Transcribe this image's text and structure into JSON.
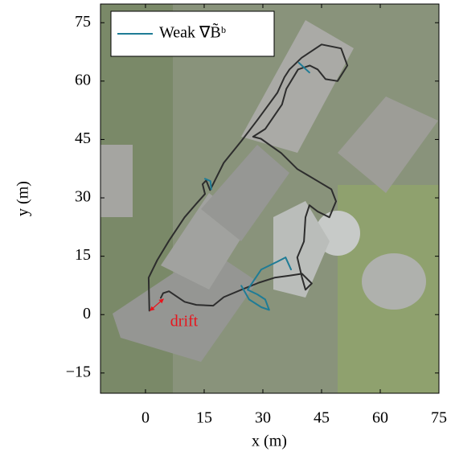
{
  "chart_data": {
    "type": "line",
    "xlabel": "x (m)",
    "ylabel": "y (m)",
    "xlim": [
      -11.5,
      75
    ],
    "ylim": [
      -20.2,
      79.8
    ],
    "xticks": [
      0,
      15,
      30,
      45,
      60,
      75
    ],
    "yticks": [
      {
        "value": -15,
        "label": "−15"
      },
      0,
      15,
      30,
      45,
      60,
      75
    ],
    "grid": false,
    "legend_position": "upper left",
    "annotation": {
      "text": "drift",
      "color": "#e8141c"
    },
    "series": [
      {
        "color": "#2d2d2d",
        "x": [
          1,
          0.8,
          3,
          6,
          10,
          13,
          15.2,
          14.6,
          15.5,
          16.5,
          20,
          24.5,
          28.6,
          33.7,
          35.5,
          36.8,
          39.9,
          45,
          50,
          51.6,
          49.1,
          46,
          44,
          42,
          39,
          36,
          34.9,
          30.6,
          27.5,
          29.5,
          34.7,
          38.8,
          44,
          47.5,
          48.7,
          47,
          44,
          41.9,
          40.9,
          40.5,
          38.8,
          40,
          40.9,
          42.5,
          40,
          36.8,
          33,
          29,
          24.5,
          20,
          17.3,
          13,
          10,
          6,
          4.5,
          3.9
        ],
        "values": [
          1,
          9.5,
          14,
          19,
          25,
          28.5,
          31,
          33.5,
          34.5,
          32,
          39,
          44.6,
          50,
          57,
          61,
          63,
          66,
          69.4,
          68.4,
          64,
          60,
          60.5,
          63,
          64,
          63,
          58,
          54,
          47.7,
          45.7,
          45.2,
          41.5,
          37.4,
          34.3,
          32.2,
          29.1,
          25,
          26.5,
          28.1,
          25,
          18.8,
          14.7,
          9.5,
          6.4,
          8,
          10.5,
          10,
          9.5,
          8.2,
          6.4,
          4.5,
          2.3,
          2.5,
          3.3,
          6,
          5.5,
          4.3
        ]
      },
      {
        "name": "Weak ∇B̃ᵇ",
        "color": "#1f7c96",
        "x": [
          15.2,
          16.6,
          16.8,
          null,
          39.2,
          41.9,
          null,
          24.5,
          26.5,
          29.6,
          31.6,
          30.6,
          28.6,
          26.1,
          29.6,
          33.7,
          35.8,
          37.2
        ],
        "values": [
          34.9,
          34.3,
          32.2,
          null,
          64.7,
          62.2,
          null,
          7.4,
          3.9,
          1.9,
          1.2,
          3.9,
          5.2,
          6.4,
          11.6,
          13.6,
          14.7,
          11.6
        ]
      }
    ]
  }
}
